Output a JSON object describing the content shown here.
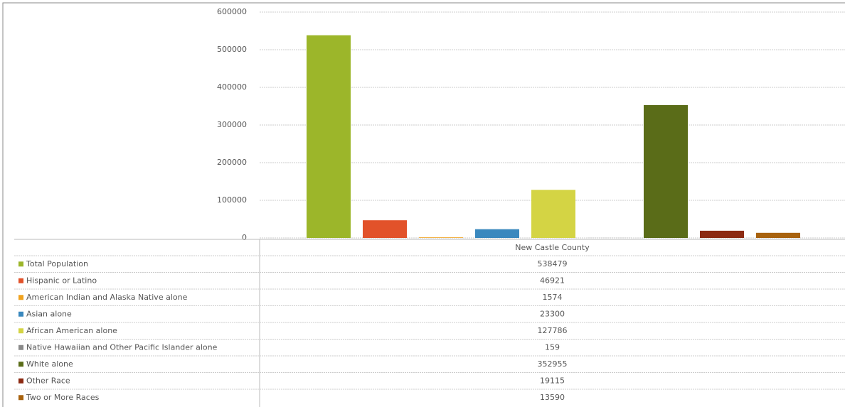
{
  "chart_data": {
    "type": "bar",
    "categories": [
      "New Castle County"
    ],
    "series": [
      {
        "name": "Total Population",
        "color": "#9cb62a",
        "values": [
          538479
        ]
      },
      {
        "name": "Hispanic or Latino",
        "color": "#e2522a",
        "values": [
          46921
        ]
      },
      {
        "name": "American Indian and Alaska Native alone",
        "color": "#f0a21e",
        "values": [
          1574
        ]
      },
      {
        "name": "Asian alone",
        "color": "#3a88be",
        "values": [
          23300
        ]
      },
      {
        "name": "African American alone",
        "color": "#d4d444",
        "values": [
          127786
        ]
      },
      {
        "name": "Native Hawaiian and Other Pacific Islander alone",
        "color": "#8a8a8a",
        "values": [
          159
        ]
      },
      {
        "name": "White alone",
        "color": "#5a6c18",
        "values": [
          352955
        ]
      },
      {
        "name": "Other Race",
        "color": "#8c2a12",
        "values": [
          19115
        ]
      },
      {
        "name": "Two or More Races",
        "color": "#a8620e",
        "values": [
          13590
        ]
      }
    ],
    "ylim": [
      0,
      600000
    ],
    "yticks": [
      0,
      100000,
      200000,
      300000,
      400000,
      500000,
      600000
    ],
    "grid": true
  }
}
